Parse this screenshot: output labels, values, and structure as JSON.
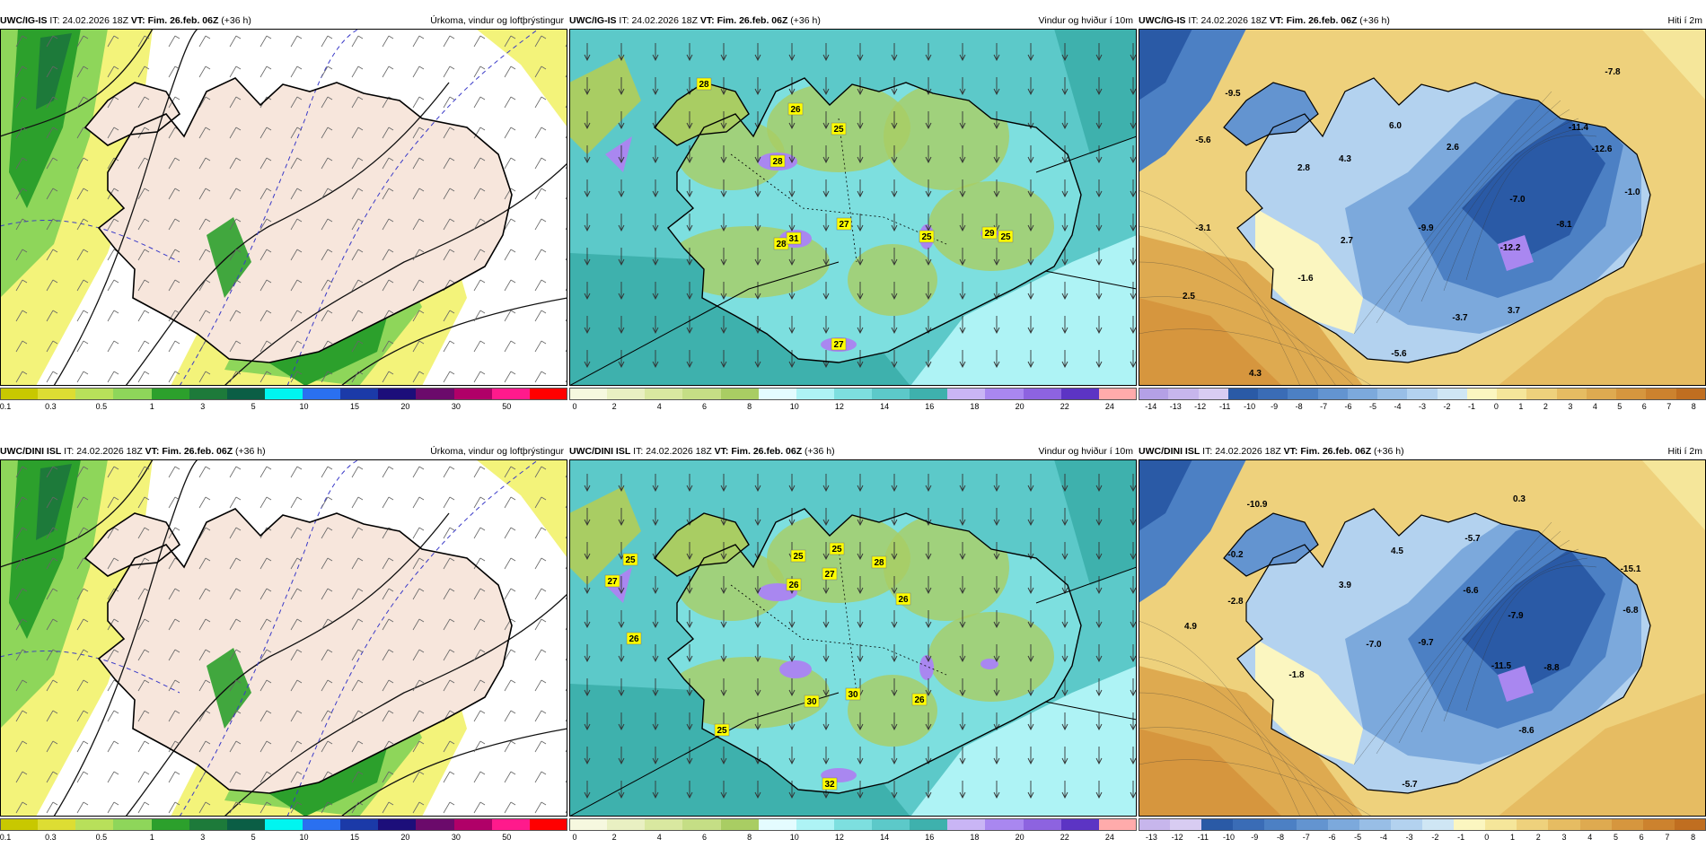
{
  "panels": [
    {
      "source": "UWC/IG-IS",
      "it_label": "IT:",
      "it_value": "24.02.2026 18Z",
      "vt_label": "VT:",
      "vt_value": "Fim. 26.feb. 06Z",
      "lead": "(+36 h)",
      "title": "Úrkoma, vindur og loftþrýstingur",
      "type": "precip",
      "colorbar": {
        "colors": [
          "#c8c800",
          "#dddd33",
          "#b8e05a",
          "#8ed65a",
          "#2ca02c",
          "#1d7a3a",
          "#0b5e45",
          "#00f5f0",
          "#2a70f0",
          "#1b3aa8",
          "#1c0e7a",
          "#6b0a6b",
          "#b00068",
          "#ff1a8c",
          "#ff0000"
        ],
        "ticks": [
          "0.1",
          "0.3",
          "0.5",
          "1",
          "3",
          "5",
          "10",
          "15",
          "20",
          "30",
          "50"
        ]
      },
      "labels": []
    },
    {
      "source": "UWC/IG-IS",
      "it_label": "IT:",
      "it_value": "24.02.2026 18Z",
      "vt_label": "VT:",
      "vt_value": "Fim. 26.feb. 06Z",
      "lead": "(+36 h)",
      "title": "Vindur og hviður í 10m",
      "type": "wind",
      "colorbar": {
        "colors": [
          "#f6f8df",
          "#e9f0c2",
          "#d9e8a0",
          "#c5de85",
          "#a9cd63",
          "#e4fcff",
          "#aef3f5",
          "#7ddfdf",
          "#5cc9c9",
          "#3eb1ad",
          "#c9b5f5",
          "#a987f0",
          "#8d63e0",
          "#5c34c4",
          "#ffabab"
        ],
        "ticks": [
          "0",
          "2",
          "4",
          "6",
          "8",
          "10",
          "12",
          "14",
          "16",
          "18",
          "20",
          "22",
          "24"
        ]
      },
      "labels": [
        "28",
        "26",
        "25",
        "28",
        "27",
        "28",
        "31",
        "25",
        "29",
        "25",
        "27"
      ]
    },
    {
      "source": "UWC/IG-IS",
      "it_label": "IT:",
      "it_value": "24.02.2026 18Z",
      "vt_label": "VT:",
      "vt_value": "Fim. 26.feb. 06Z",
      "lead": "(+36 h)",
      "title": "Hiti í 2m",
      "type": "temp",
      "colorbar": {
        "colors": [
          "#b4a0e6",
          "#c7b6ec",
          "#d8ccf2",
          "#2a5aa6",
          "#3a6cb6",
          "#4c80c4",
          "#6394d0",
          "#7ca9dc",
          "#98bee6",
          "#b3d2ef",
          "#cfe6f4",
          "#fbf6c0",
          "#f5e69a",
          "#eed17c",
          "#e6bc62",
          "#deaa50",
          "#d6963e",
          "#cc822e",
          "#c06e20"
        ],
        "ticks": [
          "-14",
          "-13",
          "-12",
          "-11",
          "-10",
          "-9",
          "-8",
          "-7",
          "-6",
          "-5",
          "-4",
          "-3",
          "-2",
          "-1",
          "0",
          "1",
          "2",
          "3",
          "4",
          "5",
          "6",
          "7",
          "8"
        ]
      },
      "labels": [
        "-9.5",
        "-5.6",
        "-7.8",
        "6.0",
        "4.3",
        "2.6",
        "2.8",
        "-11.4",
        "-12.6",
        "-1.0",
        "-7.0",
        "-3.1",
        "2.7",
        "-9.9",
        "-8.1",
        "-12.2",
        "-1.6",
        "2.5",
        "-3.7",
        "3.7",
        "-5.6",
        "4.3"
      ]
    },
    {
      "source": "UWC/DINI ISL",
      "it_label": "IT:",
      "it_value": "24.02.2026 18Z",
      "vt_label": "VT:",
      "vt_value": "Fim. 26.feb. 06Z",
      "lead": "(+36 h)",
      "title": "Úrkoma, vindur og loftþrýstingur",
      "type": "precip",
      "colorbar": {
        "colors": [
          "#c8c800",
          "#dddd33",
          "#b8e05a",
          "#8ed65a",
          "#2ca02c",
          "#1d7a3a",
          "#0b5e45",
          "#00f5f0",
          "#2a70f0",
          "#1b3aa8",
          "#1c0e7a",
          "#6b0a6b",
          "#b00068",
          "#ff1a8c",
          "#ff0000"
        ],
        "ticks": [
          "0.1",
          "0.3",
          "0.5",
          "1",
          "3",
          "5",
          "10",
          "15",
          "20",
          "30",
          "50"
        ]
      },
      "labels": []
    },
    {
      "source": "UWC/DINI ISL",
      "it_label": "IT:",
      "it_value": "24.02.2026 18Z",
      "vt_label": "VT:",
      "vt_value": "Fim. 26.feb. 06Z",
      "lead": "(+36 h)",
      "title": "Vindur og hviður í 10m",
      "type": "wind",
      "colorbar": {
        "colors": [
          "#f6f8df",
          "#e9f0c2",
          "#d9e8a0",
          "#c5de85",
          "#a9cd63",
          "#e4fcff",
          "#aef3f5",
          "#7ddfdf",
          "#5cc9c9",
          "#3eb1ad",
          "#c9b5f5",
          "#a987f0",
          "#8d63e0",
          "#5c34c4",
          "#ffabab"
        ],
        "ticks": [
          "0",
          "2",
          "4",
          "6",
          "8",
          "10",
          "12",
          "14",
          "16",
          "18",
          "20",
          "22",
          "24"
        ]
      },
      "labels": [
        "25",
        "27",
        "26",
        "25",
        "27",
        "28",
        "26",
        "25",
        "26",
        "30",
        "30",
        "26",
        "25",
        "32"
      ]
    },
    {
      "source": "UWC/DINI ISL",
      "it_label": "IT:",
      "it_value": "24.02.2026 18Z",
      "vt_label": "VT:",
      "vt_value": "Fim. 26.feb. 06Z",
      "lead": "(+36 h)",
      "title": "Hiti í 2m",
      "type": "temp",
      "colorbar": {
        "colors": [
          "#c7b6ec",
          "#d8ccf2",
          "#2a5aa6",
          "#3a6cb6",
          "#4c80c4",
          "#6394d0",
          "#7ca9dc",
          "#98bee6",
          "#b3d2ef",
          "#cfe6f4",
          "#fbf6c0",
          "#f5e69a",
          "#eed17c",
          "#e6bc62",
          "#deaa50",
          "#d6963e",
          "#cc822e",
          "#c06e20"
        ],
        "ticks": [
          "-13",
          "-12",
          "-11",
          "-10",
          "-9",
          "-8",
          "-7",
          "-6",
          "-5",
          "-4",
          "-3",
          "-2",
          "-1",
          "0",
          "1",
          "2",
          "3",
          "4",
          "5",
          "6",
          "7",
          "8"
        ]
      },
      "labels": [
        "-10.9",
        "0.3",
        "-0.2",
        "4.5",
        "-5.7",
        "-15.1",
        "-2.8",
        "3.9",
        "-6.6",
        "-6.8",
        "4.9",
        "-7.9",
        "-7.0",
        "-9.7",
        "-11.5",
        "-8.8",
        "-1.8",
        "-8.6",
        "-5.7"
      ]
    }
  ]
}
